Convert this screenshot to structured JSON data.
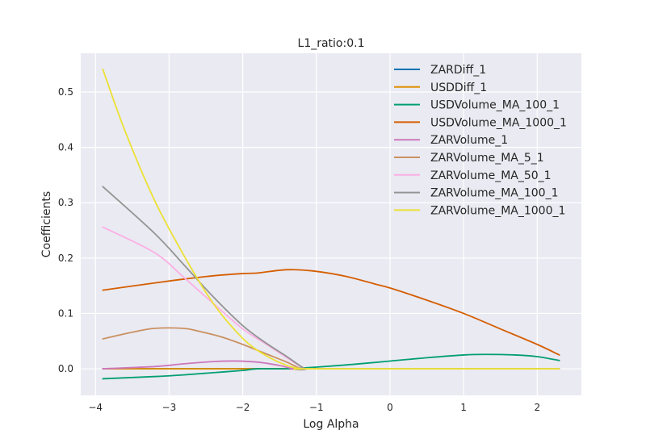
{
  "chart_data": {
    "type": "line",
    "title": "L1_ratio:0.1",
    "xlabel": "Log Alpha",
    "ylabel": "Coefficients",
    "xlim": [
      -4.2,
      2.6
    ],
    "ylim": [
      -0.048,
      0.57
    ],
    "x_ticks": [
      -4,
      -3,
      -2,
      -1,
      0,
      1,
      2
    ],
    "x_tick_labels": [
      "−4",
      "−3",
      "−2",
      "−1",
      "0",
      "1",
      "2"
    ],
    "y_ticks": [
      0.0,
      0.1,
      0.2,
      0.3,
      0.4,
      0.5
    ],
    "y_tick_labels": [
      "0.0",
      "0.1",
      "0.2",
      "0.3",
      "0.4",
      "0.5"
    ],
    "grid": true,
    "legend_position": "top-right",
    "background_color": "#eaeaf2",
    "series": [
      {
        "name": "ZARDiff_1",
        "color": "#0072b2",
        "x": [
          -3.9,
          2.3
        ],
        "y": [
          0.0,
          0.0
        ]
      },
      {
        "name": "USDDiff_1",
        "color": "#de8f05",
        "x": [
          -3.9,
          -1.5,
          -1.0,
          2.3
        ],
        "y": [
          0.0,
          0.0,
          0.0,
          0.0
        ]
      },
      {
        "name": "USDVolume_MA_100_1",
        "color": "#029e73",
        "x": [
          -3.9,
          -3.2,
          -2.8,
          -2.4,
          -2.0,
          -1.8,
          -1.4,
          -1.0,
          -0.5,
          0.0,
          0.5,
          1.0,
          1.3,
          1.7,
          2.0,
          2.3
        ],
        "y": [
          -0.018,
          -0.014,
          -0.011,
          -0.007,
          -0.003,
          0.0,
          0.0,
          0.003,
          0.008,
          0.014,
          0.02,
          0.025,
          0.026,
          0.025,
          0.022,
          0.015
        ]
      },
      {
        "name": "USDVolume_MA_1000_1",
        "color": "#d55e00",
        "x": [
          -3.9,
          -3.2,
          -2.8,
          -2.4,
          -2.0,
          -1.8,
          -1.5,
          -1.3,
          -1.0,
          -0.6,
          -0.2,
          0.0,
          0.5,
          1.0,
          1.5,
          2.0,
          2.3
        ],
        "y": [
          0.142,
          0.155,
          0.162,
          0.168,
          0.172,
          0.173,
          0.178,
          0.179,
          0.176,
          0.167,
          0.153,
          0.146,
          0.124,
          0.1,
          0.072,
          0.044,
          0.025
        ]
      },
      {
        "name": "ZARVolume_1",
        "color": "#cc78bc",
        "x": [
          -3.9,
          -3.2,
          -2.8,
          -2.4,
          -2.1,
          -1.8,
          -1.5,
          -1.3,
          -1.0,
          2.3
        ],
        "y": [
          0.0,
          0.004,
          0.009,
          0.013,
          0.014,
          0.012,
          0.006,
          0.0,
          0.0,
          0.0
        ]
      },
      {
        "name": "ZARVolume_MA_5_1",
        "color": "#ca9161",
        "x": [
          -3.9,
          -3.5,
          -3.2,
          -2.8,
          -2.6,
          -2.3,
          -2.0,
          -1.7,
          -1.4,
          -1.2,
          -1.0,
          2.3
        ],
        "y": [
          0.054,
          0.066,
          0.073,
          0.073,
          0.068,
          0.058,
          0.044,
          0.028,
          0.012,
          0.0,
          0.0,
          0.0
        ]
      },
      {
        "name": "ZARVolume_MA_50_1",
        "color": "#fbafe4",
        "x": [
          -3.9,
          -3.2,
          -2.8,
          -2.4,
          -2.0,
          -1.7,
          -1.4,
          -1.15,
          -1.0,
          2.3
        ],
        "y": [
          0.256,
          0.21,
          0.165,
          0.118,
          0.072,
          0.046,
          0.02,
          0.0,
          0.0,
          0.0
        ]
      },
      {
        "name": "ZARVolume_MA_100_1",
        "color": "#949494",
        "x": [
          -3.9,
          -3.2,
          -2.8,
          -2.4,
          -2.0,
          -1.7,
          -1.4,
          -1.15,
          -1.0,
          2.3
        ],
        "y": [
          0.329,
          0.245,
          0.188,
          0.13,
          0.078,
          0.048,
          0.022,
          0.0,
          0.0,
          0.0
        ]
      },
      {
        "name": "ZARVolume_MA_1000_1",
        "color": "#ece133",
        "x": [
          -3.9,
          -3.6,
          -3.2,
          -2.8,
          -2.4,
          -2.0,
          -1.7,
          -1.4,
          -1.2,
          -1.0,
          2.3
        ],
        "y": [
          0.541,
          0.43,
          0.305,
          0.205,
          0.118,
          0.055,
          0.025,
          0.006,
          0.0,
          0.0,
          0.0
        ]
      }
    ]
  }
}
